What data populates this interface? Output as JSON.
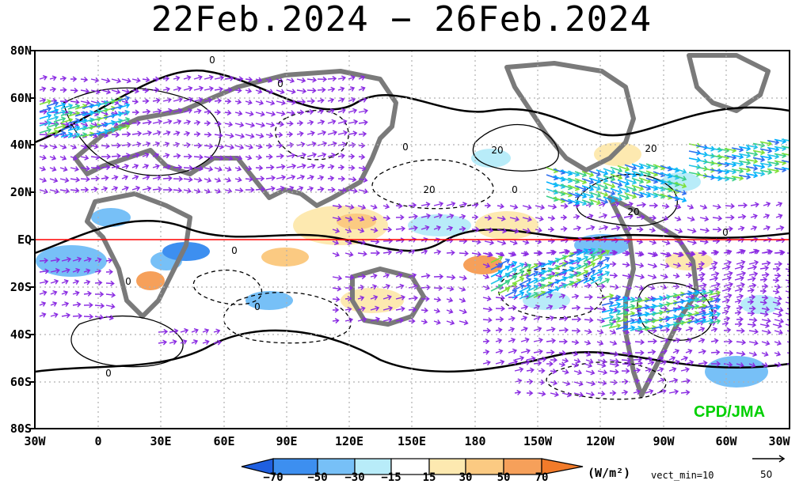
{
  "title": "22Feb.2024 − 26Feb.2024",
  "lat_labels": [
    "80N",
    "60N",
    "40N",
    "20N",
    "EQ",
    "20S",
    "40S",
    "60S",
    "80S"
  ],
  "lon_labels": [
    "30W",
    "0",
    "30E",
    "60E",
    "90E",
    "120E",
    "150E",
    "180",
    "150W",
    "120W",
    "90W",
    "60W",
    "30W"
  ],
  "contour_labels": [
    "0",
    "0",
    "0",
    "0",
    "0",
    "0",
    "0",
    "0",
    "0",
    "20",
    "20",
    "20",
    "20"
  ],
  "colorbar": {
    "ticks": [
      "−70",
      "−50",
      "−30",
      "−15",
      "15",
      "30",
      "50",
      "70"
    ],
    "colors": [
      "#1f5fe0",
      "#3d8ff0",
      "#77c0f7",
      "#b8ecf9",
      "#ffffff",
      "#fde9b0",
      "#fbca82",
      "#f6a05a",
      "#f27b2a"
    ]
  },
  "units": "(W/m²)",
  "vect_min": "vect_min=10",
  "ref_vector": "50",
  "credit": "CPD/JMA",
  "colors": {
    "equator": "#ff0000",
    "vector": "#8a2be2",
    "land": "#7a7a7a",
    "credit": "#00d000"
  }
}
